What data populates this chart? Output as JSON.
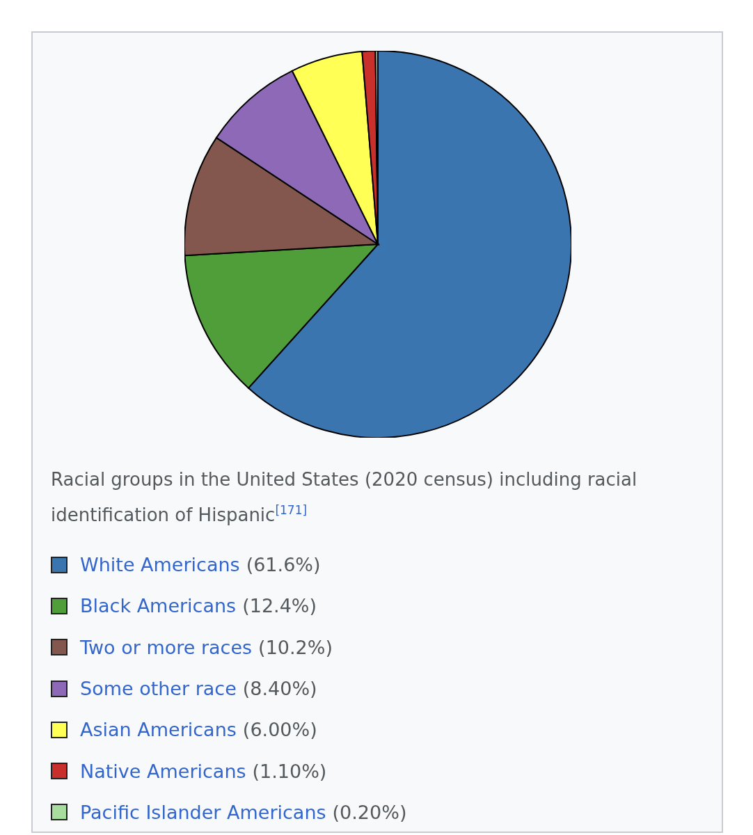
{
  "chart_data": {
    "type": "pie",
    "title": "Racial groups in the United States (2020 census) including racial identification of Hispanic$^{[171]}$",
    "categories": [
      "White Americans",
      "Black Americans",
      "Two or more races",
      "Some other race",
      "Asian Americans",
      "Native Americans",
      "Pacific Islander Americans"
    ],
    "values": [
      61.6,
      12.4,
      10.2,
      8.4,
      6.0,
      1.1,
      0.2
    ],
    "value_labels": [
      "(61.6%)",
      "(12.4%)",
      "(10.2%)",
      "(8.40%)",
      "(6.00%)",
      "(1.10%)",
      "(0.20%)"
    ],
    "colors": [
      "#3a75af",
      "#4f9e3a",
      "#83574d",
      "#8d69b8",
      "#ffff55",
      "#c9302c",
      "#a8dd9f"
    ],
    "legend": "bottom"
  }
}
